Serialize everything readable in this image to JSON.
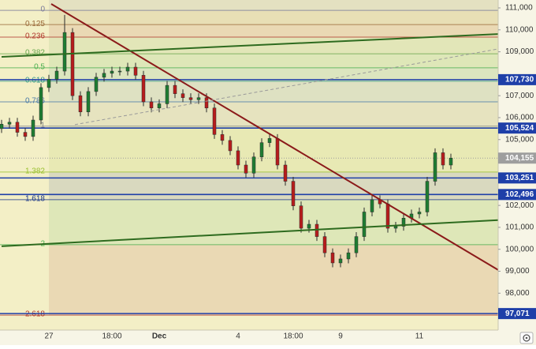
{
  "chart_data": {
    "type": "candlestick",
    "ylim": [
      96320,
      111360
    ],
    "yticks": [
      {
        "value": 111000,
        "label": "111,000"
      },
      {
        "value": 110000,
        "label": "110,000"
      },
      {
        "value": 109000,
        "label": "109,000"
      },
      {
        "value": 107000,
        "label": "107,000"
      },
      {
        "value": 106000,
        "label": "106,000"
      },
      {
        "value": 105000,
        "label": "105,000"
      },
      {
        "value": 102000,
        "label": "102,000"
      },
      {
        "value": 101000,
        "label": "101,000"
      },
      {
        "value": 100000,
        "label": "100,000"
      },
      {
        "value": 99000,
        "label": "99,000"
      },
      {
        "value": 98000,
        "label": "98,000"
      }
    ],
    "categories": [
      null,
      null,
      null,
      null,
      null,
      null,
      "27",
      null,
      null,
      null,
      null,
      null,
      null,
      null,
      "18:00",
      null,
      null,
      null,
      null,
      null,
      "Dec",
      null,
      null,
      null,
      null,
      null,
      null,
      null,
      null,
      null,
      "4",
      null,
      null,
      null,
      null,
      null,
      null,
      "18:00",
      null,
      null,
      null,
      null,
      null,
      "9",
      null,
      null,
      null,
      null,
      null,
      null,
      null,
      null,
      null,
      "11",
      null,
      null,
      null,
      null
    ],
    "up_color": "#1e7d32",
    "down_color": "#b71c1c",
    "open": [
      105500,
      105700,
      105790,
      105330,
      105140,
      105890,
      107370,
      107750,
      108120,
      109880,
      107000,
      106260,
      107190,
      107840,
      108020,
      108120,
      108120,
      108300,
      107930,
      106720,
      106440,
      106630,
      107470,
      107090,
      106910,
      106820,
      106910,
      106440,
      105230,
      104960,
      104490,
      103840,
      103470,
      104210,
      104860,
      105050,
      103840,
      103100,
      101980,
      100960,
      101140,
      100580,
      99840,
      99380,
      99560,
      99840,
      100580,
      101700,
      102260,
      102070,
      100960,
      101050,
      101420,
      101610,
      101700,
      103100,
      104400,
      103840
    ],
    "high": [
      105900,
      105990,
      105990,
      105530,
      106090,
      107570,
      107950,
      108320,
      110680,
      110080,
      107200,
      107390,
      108040,
      108220,
      108320,
      108320,
      108500,
      108500,
      108130,
      106920,
      106830,
      107670,
      107670,
      107290,
      107110,
      107110,
      107110,
      106640,
      105430,
      105160,
      104690,
      104040,
      104410,
      105060,
      105250,
      105250,
      104040,
      103300,
      102180,
      101340,
      101340,
      100780,
      100040,
      99760,
      100040,
      100780,
      101900,
      102460,
      102460,
      102270,
      101250,
      101620,
      101810,
      101900,
      103300,
      104600,
      104600,
      104355
    ],
    "low": [
      105300,
      105500,
      105130,
      104940,
      104940,
      105690,
      107170,
      107550,
      107920,
      106800,
      106060,
      106060,
      106990,
      107640,
      107820,
      107920,
      107920,
      107730,
      106520,
      106240,
      106240,
      106430,
      106890,
      106710,
      106620,
      106620,
      106240,
      105030,
      104760,
      104290,
      103640,
      103270,
      103270,
      104010,
      104660,
      103640,
      102900,
      101780,
      100760,
      100760,
      100380,
      99640,
      99180,
      99180,
      99360,
      99640,
      100380,
      101500,
      101870,
      100760,
      100760,
      100850,
      101220,
      101410,
      101500,
      102900,
      103640,
      103640
    ],
    "close": [
      105700,
      105790,
      105330,
      105140,
      105890,
      107370,
      107750,
      108120,
      109880,
      107000,
      106260,
      107190,
      107840,
      108020,
      108120,
      108120,
      108300,
      107930,
      106720,
      106440,
      106630,
      107470,
      107090,
      106910,
      106820,
      106910,
      106440,
      105230,
      104960,
      104490,
      103840,
      103470,
      104210,
      104860,
      105050,
      103840,
      103100,
      101980,
      100960,
      101140,
      100580,
      99840,
      99380,
      99560,
      99840,
      100580,
      101700,
      102260,
      102070,
      100960,
      101050,
      101420,
      101610,
      101700,
      103100,
      104400,
      103840,
      104155
    ],
    "fib_levels": [
      {
        "level": 0,
        "price": 110890,
        "color": "#7a7a9a"
      },
      {
        "level": 0.125,
        "price": 110240,
        "color": "#9a6a3a"
      },
      {
        "level": 0.236,
        "price": 109670,
        "color": "#b03a2e"
      },
      {
        "level": 0.382,
        "price": 108910,
        "color": "#6aa84f"
      },
      {
        "level": 0.5,
        "price": 108270,
        "color": "#4caf50"
      },
      {
        "level": 0.618,
        "price": 107660,
        "color": "#3a9a8a"
      },
      {
        "level": 0.786,
        "price": 106720,
        "color": "#4a7aa8"
      },
      {
        "level": 1,
        "price": 105610,
        "color": "#8a8a8a"
      },
      {
        "level": 1.382,
        "price": 103520,
        "color": "#9ac030"
      },
      {
        "level": 1.618,
        "price": 102260,
        "color": "#1e3a8a"
      },
      {
        "level": 2,
        "price": 100210,
        "color": "#4caf50"
      },
      {
        "level": 2.618,
        "price": 97000,
        "color": "#b03a2e"
      }
    ],
    "price_lines": [
      {
        "value": 107730,
        "label": "107,730",
        "color": "#1e3fa8"
      },
      {
        "value": 105524,
        "label": "105,524",
        "color": "#1e3fa8"
      },
      {
        "value": 103251,
        "label": "103,251",
        "color": "#1e3fa8"
      },
      {
        "value": 102496,
        "label": "102,496",
        "color": "#1e3fa8"
      },
      {
        "value": 97071,
        "label": "97,071",
        "color": "#1e3fa8"
      }
    ],
    "last_price": {
      "value": 104155,
      "label": "104,155",
      "color": "#9e9e9e"
    },
    "trendlines": [
      {
        "x": [
          6.3,
          63
        ],
        "y": [
          111180,
          99060
        ],
        "color": "#8b1a1a",
        "dashed": false
      },
      {
        "x": [
          0,
          63
        ],
        "y": [
          108770,
          109810
        ],
        "color": "#2e6b1f",
        "dashed": false
      },
      {
        "x": [
          0,
          63
        ],
        "y": [
          100140,
          101330
        ],
        "color": "#2e6b1f",
        "dashed": false
      },
      {
        "x": [
          9.3,
          63
        ],
        "y": [
          105680,
          109130
        ],
        "color": "#9a9a9a",
        "dashed": true
      }
    ]
  }
}
